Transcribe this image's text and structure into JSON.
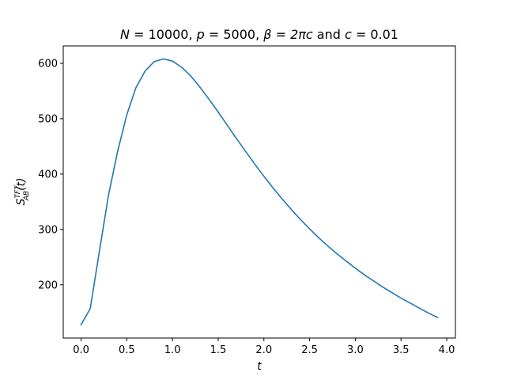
{
  "chart_data": {
    "type": "line",
    "title": "N = 10000, p = 5000, β = 2πc and c = 0.01",
    "title_parts": {
      "n_sym": "N",
      "n_val": "10000",
      "p_sym": "p",
      "p_val": "5000",
      "beta_sym": "β",
      "beta_rhs": "2πc",
      "and_word": "and",
      "c_sym": "c",
      "c_val": "0.01"
    },
    "xlabel": "t",
    "ylabel_parts": {
      "base": "S",
      "sup": "TFT",
      "sub": "AB",
      "arg": "(t)"
    },
    "xlim": [
      -0.195,
      4.095
    ],
    "ylim": [
      103.9,
      631.4
    ],
    "xticks": [
      0.0,
      0.5,
      1.0,
      1.5,
      2.0,
      2.5,
      3.0,
      3.5,
      4.0
    ],
    "xtick_labels": [
      "0.0",
      "0.5",
      "1.0",
      "1.5",
      "2.0",
      "2.5",
      "3.0",
      "3.5",
      "4.0"
    ],
    "yticks": [
      200,
      300,
      400,
      500,
      600
    ],
    "ytick_labels": [
      "200",
      "300",
      "400",
      "500",
      "600"
    ],
    "grid": false,
    "legend": "none",
    "series": [
      {
        "color": "#1f77b4",
        "x": [
          0.0,
          0.1,
          0.2,
          0.3,
          0.4,
          0.5,
          0.6,
          0.7,
          0.8,
          0.9,
          1.0,
          1.1,
          1.2,
          1.3,
          1.4,
          1.5,
          1.6,
          1.7,
          1.8,
          1.9,
          2.0,
          2.1,
          2.2,
          2.3,
          2.4,
          2.5,
          2.6,
          2.7,
          2.8,
          2.9,
          3.0,
          3.1,
          3.2,
          3.3,
          3.4,
          3.5,
          3.6,
          3.7,
          3.8,
          3.9
        ],
        "y": [
          128,
          157,
          260,
          362,
          441,
          507,
          556,
          586,
          603,
          608,
          604,
          593,
          577,
          557,
          535,
          512,
          488,
          464,
          441,
          418,
          396,
          375,
          355,
          336,
          318,
          301,
          285,
          270,
          256,
          243,
          230,
          218,
          207,
          196,
          186,
          176,
          167,
          158,
          149,
          141
        ]
      }
    ]
  }
}
